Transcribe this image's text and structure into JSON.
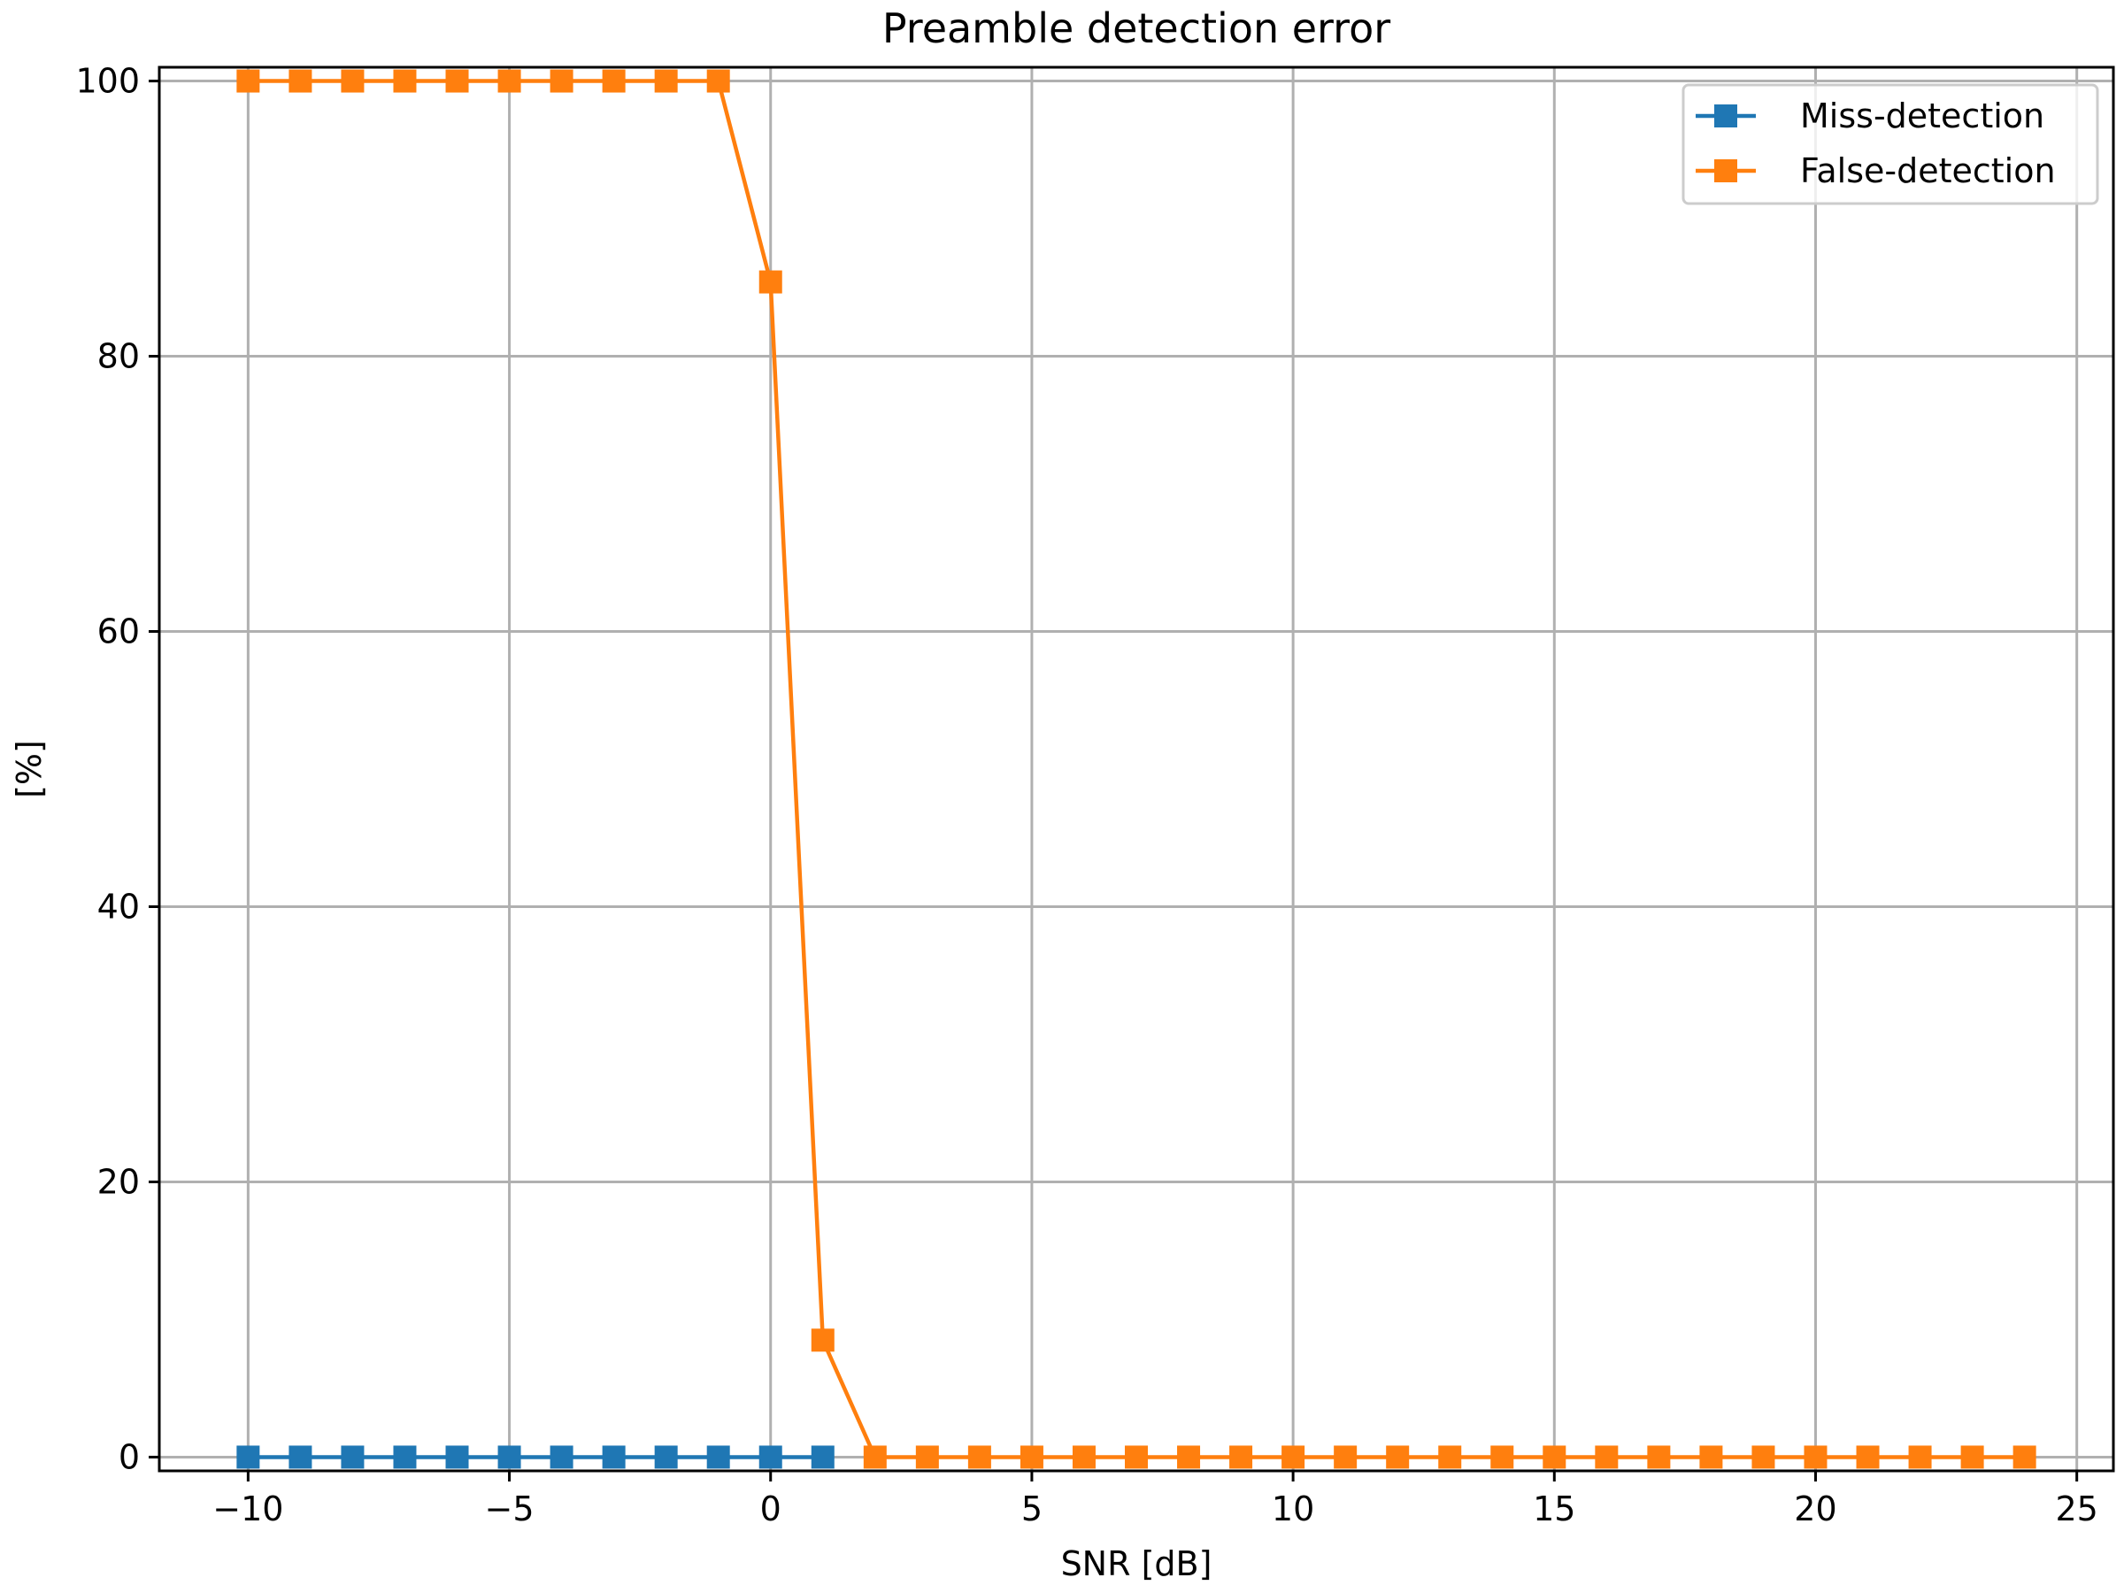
{
  "chart_data": {
    "type": "line",
    "title": "Preamble detection error",
    "xlabel": "SNR [dB]",
    "ylabel": "[%]",
    "xlim": [
      -11.7,
      25.7
    ],
    "ylim": [
      -1,
      101
    ],
    "xticks": [
      -10,
      -5,
      0,
      5,
      10,
      15,
      20,
      25
    ],
    "xtick_labels": [
      "−10",
      "−5",
      "0",
      "5",
      "10",
      "15",
      "20",
      "25"
    ],
    "yticks": [
      0,
      20,
      40,
      60,
      80,
      100
    ],
    "ytick_labels": [
      "0",
      "20",
      "40",
      "60",
      "80",
      "100"
    ],
    "grid": true,
    "legend_position": "top-right",
    "series": [
      {
        "name": "Miss-detection",
        "color": "#1f77b4",
        "marker": "square",
        "x": [
          -10,
          -9,
          -8,
          -7,
          -6,
          -5,
          -4,
          -3,
          -2,
          -1,
          0,
          1
        ],
        "y": [
          0,
          0,
          0,
          0,
          0,
          0,
          0,
          0,
          0,
          0,
          0,
          0
        ]
      },
      {
        "name": "False-detection",
        "color": "#ff7f0e",
        "marker": "square",
        "x": [
          -10,
          -9,
          -8,
          -7,
          -6,
          -5,
          -4,
          -3,
          -2,
          -1,
          0,
          1,
          2,
          3,
          4,
          5,
          6,
          7,
          8,
          9,
          10,
          11,
          12,
          13,
          14,
          15,
          16,
          17,
          18,
          19,
          20,
          21,
          22,
          23,
          24
        ],
        "y": [
          100,
          100,
          100,
          100,
          100,
          100,
          100,
          100,
          100,
          100,
          85.4,
          8.5,
          0,
          0,
          0,
          0,
          0,
          0,
          0,
          0,
          0,
          0,
          0,
          0,
          0,
          0,
          0,
          0,
          0,
          0,
          0,
          0,
          0,
          0,
          0
        ]
      }
    ]
  }
}
